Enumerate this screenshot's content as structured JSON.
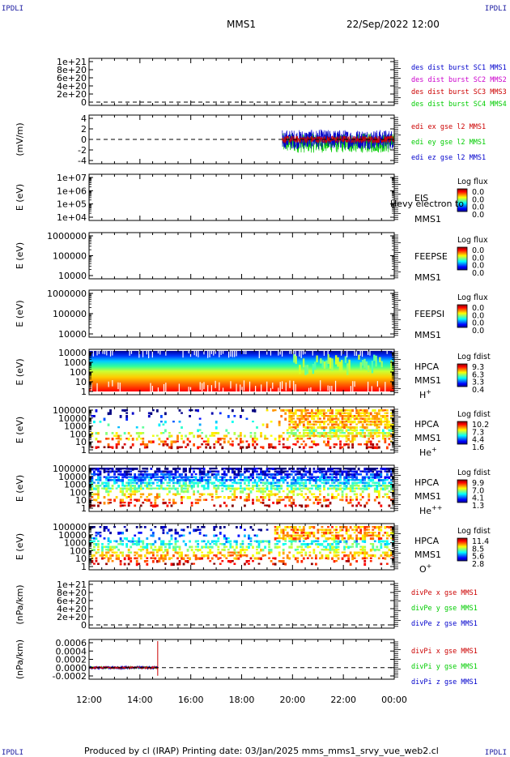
{
  "corner_labels": {
    "tl": "IPDLI",
    "tr": "IPDLI",
    "bl": "IPDLI",
    "br": "IPDLI"
  },
  "header": {
    "mission": "MMS1",
    "datetime": "22/Sep/2022 12:00"
  },
  "footer": {
    "text": "Produced by cl (IRAP)   Printing date: 03/Jan/2025   mms_mms1_srvy_vue_web2.cl"
  },
  "x_ticks": [
    "12:00",
    "14:00",
    "16:00",
    "18:00",
    "20:00",
    "22:00",
    "00:00"
  ],
  "colors": {
    "mms1": "#0000cc",
    "mms2": "#cc00cc",
    "mms3": "#cc0000",
    "mms4": "#00cc00",
    "x": "#cc0000",
    "y": "#00cc00",
    "z": "#0000cc"
  },
  "chart_data": [
    {
      "type": "line",
      "title": "",
      "ylabel": "",
      "y_ticks": [
        "1e+21",
        "8e+20",
        "6e+20",
        "4e+20",
        "2e+20",
        "0"
      ],
      "ylim": [
        0,
        1e+21
      ],
      "series": [
        {
          "name": "des dist burst SC1 MMS1",
          "color": "#0000cc",
          "values": []
        },
        {
          "name": "des dist burst SC2 MMS2",
          "color": "#cc00cc",
          "values": []
        },
        {
          "name": "des dist burst SC3 MMS3",
          "color": "#cc0000",
          "values": []
        },
        {
          "name": "des dist burst SC4 MMS4",
          "color": "#00cc00",
          "values": []
        }
      ],
      "reference_line": 0
    },
    {
      "type": "line",
      "ylabel": "(mV/m)",
      "y_ticks": [
        "4",
        "2",
        "0",
        "-2",
        "-4"
      ],
      "ylim": [
        -4,
        4
      ],
      "x_start_hours": 19.6,
      "series": [
        {
          "name": "edi ex gse l2 MMS1",
          "color": "#cc0000"
        },
        {
          "name": "edi ey gse l2 MMS1",
          "color": "#00cc00"
        },
        {
          "name": "edi ez gse l2 MMS1",
          "color": "#0000cc"
        }
      ],
      "reference_line": 0
    },
    {
      "type": "heatmap",
      "ylabel": "E (eV)",
      "y_ticks": [
        "1e+07",
        "1e+06",
        "1e+05",
        "1e+04"
      ],
      "side_labels": [
        "EIS",
        "MMS1"
      ],
      "overlay_text": "Hevy electron to",
      "colorbar": {
        "title": "Log flux",
        "ticks": [
          "0.0",
          "0.0",
          "0.0",
          "0.0"
        ]
      }
    },
    {
      "type": "heatmap",
      "ylabel": "E (eV)",
      "y_ticks": [
        "1000000",
        "100000",
        "10000"
      ],
      "side_labels": [
        "FEEPSE",
        "MMS1"
      ],
      "colorbar": {
        "title": "Log flux",
        "ticks": [
          "0.0",
          "0.0",
          "0.0",
          "0.0"
        ]
      }
    },
    {
      "type": "heatmap",
      "ylabel": "E (eV)",
      "y_ticks": [
        "1000000",
        "100000",
        "10000"
      ],
      "side_labels": [
        "FEEPSI",
        "MMS1"
      ],
      "colorbar": {
        "title": "Log flux",
        "ticks": [
          "0.0",
          "0.0",
          "0.0",
          "0.0"
        ]
      }
    },
    {
      "type": "heatmap",
      "ylabel": "E (eV)",
      "y_ticks": [
        "10000",
        "1000",
        "100",
        "10",
        "1"
      ],
      "side_labels": [
        "HPCA",
        "MMS1"
      ],
      "species": "H",
      "species_sup": "+",
      "colorbar": {
        "title": "Log fdist",
        "ticks": [
          "9.3",
          "6.3",
          "3.3",
          "0.4"
        ]
      }
    },
    {
      "type": "heatmap",
      "ylabel": "E (eV)",
      "y_ticks": [
        "100000",
        "10000",
        "1000",
        "100",
        "10",
        "1"
      ],
      "side_labels": [
        "HPCA",
        "MMS1"
      ],
      "species": "He",
      "species_sup": "+",
      "colorbar": {
        "title": "Log fdist",
        "ticks": [
          "10.2",
          "7.3",
          "4.4",
          "1.6"
        ]
      }
    },
    {
      "type": "heatmap",
      "ylabel": "E (eV)",
      "y_ticks": [
        "100000",
        "10000",
        "1000",
        "100",
        "10",
        "1"
      ],
      "side_labels": [
        "HPCA",
        "MMS1"
      ],
      "species": "He",
      "species_sup": "++",
      "colorbar": {
        "title": "Log fdist",
        "ticks": [
          "9.9",
          "7.0",
          "4.1",
          "1.3"
        ]
      }
    },
    {
      "type": "heatmap",
      "ylabel": "E (eV)",
      "y_ticks": [
        "100000",
        "10000",
        "1000",
        "100",
        "10",
        "1"
      ],
      "side_labels": [
        "HPCA",
        "MMS1"
      ],
      "species": "O",
      "species_sup": "+",
      "colorbar": {
        "title": "Log fdist",
        "ticks": [
          "11.4",
          "8.5",
          "5.6",
          "2.8"
        ]
      }
    },
    {
      "type": "line",
      "ylabel": "(nPa/km)",
      "y_ticks": [
        "1e+21",
        "8e+20",
        "6e+20",
        "4e+20",
        "2e+20",
        "0"
      ],
      "ylim": [
        0,
        1e+21
      ],
      "series": [
        {
          "name": "divPe x gse MMS1",
          "color": "#cc0000",
          "values": []
        },
        {
          "name": "divPe y gse MMS1",
          "color": "#00cc00",
          "values": []
        },
        {
          "name": "divPe z gse MMS1",
          "color": "#0000cc",
          "values": []
        }
      ],
      "reference_line": 0
    },
    {
      "type": "line",
      "ylabel": "(nPa/km)",
      "y_ticks": [
        "0.0006",
        "0.0004",
        "0.0002",
        "0.0000",
        "-0.0002"
      ],
      "ylim": [
        -0.0003,
        0.0006
      ],
      "x_end_hours": 14.7,
      "series": [
        {
          "name": "divPi x gse MMS1",
          "color": "#cc0000"
        },
        {
          "name": "divPi y gse MMS1",
          "color": "#00cc00"
        },
        {
          "name": "divPi z gse MMS1",
          "color": "#0000cc"
        }
      ],
      "reference_line": 0
    }
  ]
}
